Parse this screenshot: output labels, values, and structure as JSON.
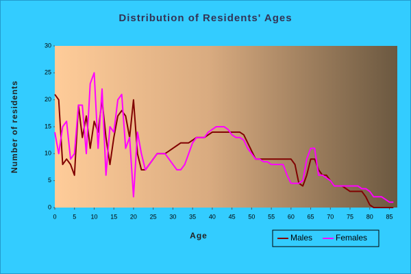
{
  "chart_data": {
    "type": "line",
    "title": "Distribution of Residents' Ages",
    "xlabel": "Age",
    "ylabel": "Number of residents",
    "x": [
      0,
      1,
      2,
      3,
      4,
      5,
      6,
      7,
      8,
      9,
      10,
      11,
      12,
      13,
      14,
      15,
      16,
      17,
      18,
      19,
      20,
      21,
      22,
      23,
      24,
      25,
      26,
      27,
      28,
      29,
      30,
      31,
      32,
      33,
      34,
      35,
      36,
      37,
      38,
      39,
      40,
      41,
      42,
      43,
      44,
      45,
      46,
      47,
      48,
      49,
      50,
      51,
      52,
      53,
      54,
      55,
      56,
      57,
      58,
      59,
      60,
      61,
      62,
      63,
      64,
      65,
      66,
      67,
      68,
      69,
      70,
      71,
      72,
      73,
      74,
      75,
      76,
      77,
      78,
      79,
      80,
      81,
      82,
      83,
      84,
      85,
      86
    ],
    "series": [
      {
        "name": "Males",
        "color": "#800000",
        "values": [
          21,
          20,
          8,
          9,
          8,
          6,
          19,
          13,
          17,
          11,
          16,
          14,
          20,
          13,
          8,
          13,
          17,
          18,
          17,
          13,
          20,
          10,
          7,
          7,
          8,
          9,
          10,
          10,
          10,
          10.5,
          11,
          11.5,
          12,
          12,
          12,
          12.5,
          13,
          13,
          13,
          13.5,
          14,
          14,
          14,
          14,
          14,
          14,
          14,
          14,
          13.5,
          12,
          10.5,
          9,
          9,
          9,
          9,
          9,
          9,
          9,
          9,
          9,
          9,
          8,
          4.5,
          4,
          6,
          9,
          9,
          7,
          6,
          6,
          5,
          4,
          4,
          4,
          3.5,
          3,
          3,
          3,
          3,
          2,
          0.5,
          0,
          0,
          0,
          0,
          0,
          0
        ]
      },
      {
        "name": "Females",
        "color": "#ff00ff",
        "values": [
          14,
          10,
          15,
          16,
          9,
          10,
          19,
          19,
          10,
          23,
          25,
          11,
          22,
          6,
          15,
          14,
          20,
          21,
          11,
          13,
          2,
          14,
          10,
          7,
          8,
          9,
          10,
          10,
          10,
          9,
          8,
          7,
          7,
          8,
          10,
          12,
          13,
          13,
          13,
          14,
          14.5,
          15,
          15,
          15,
          14.5,
          13.5,
          13,
          13,
          12.5,
          11,
          10,
          9,
          9,
          8.5,
          8.5,
          8,
          8,
          8,
          8,
          6,
          4.5,
          4.5,
          4.5,
          5,
          9,
          11,
          11,
          6,
          6,
          5.5,
          5,
          4,
          4,
          4,
          4,
          4,
          4,
          4,
          3.5,
          3.5,
          3,
          2,
          2,
          2,
          1.5,
          1,
          1
        ]
      }
    ],
    "xlim": [
      0,
      87
    ],
    "ylim": [
      0,
      30
    ],
    "xticks": [
      0,
      5,
      10,
      15,
      20,
      25,
      30,
      35,
      40,
      45,
      50,
      55,
      60,
      65,
      70,
      75,
      80,
      85
    ],
    "yticks": [
      0,
      5,
      10,
      15,
      20,
      25,
      30
    ],
    "legend": "bottom-right"
  }
}
